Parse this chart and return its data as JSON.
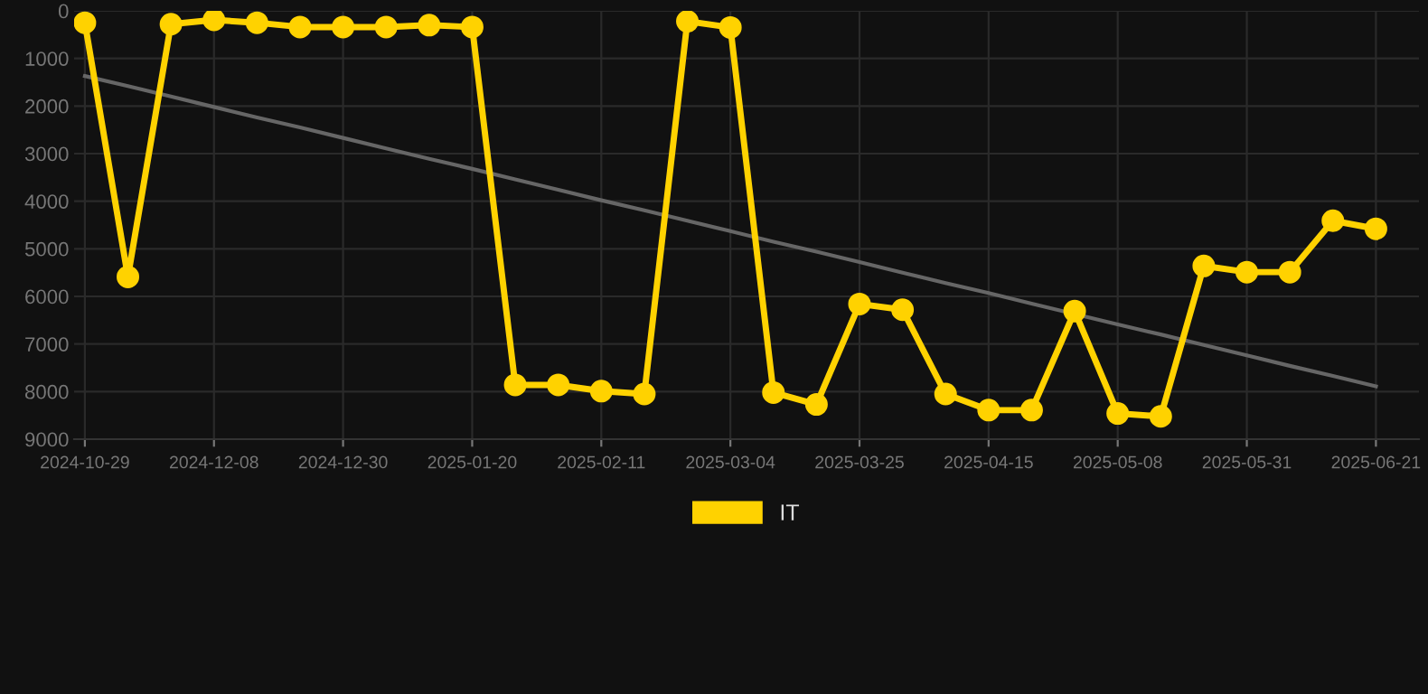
{
  "chart_data": {
    "type": "line",
    "categories": [
      "2024-10-29",
      null,
      null,
      "2024-12-08",
      null,
      null,
      "2024-12-30",
      null,
      null,
      "2025-01-20",
      null,
      null,
      "2025-02-11",
      null,
      null,
      "2025-03-04",
      null,
      null,
      "2025-03-25",
      null,
      null,
      "2025-04-15",
      null,
      null,
      "2025-05-08",
      null,
      null,
      "2025-05-31",
      null,
      null,
      "2025-06-21"
    ],
    "series": [
      {
        "name": "IT",
        "color": "#ffd200",
        "marker": "circle",
        "values": [
          250,
          5590,
          280,
          190,
          250,
          340,
          340,
          340,
          300,
          340,
          7860,
          7860,
          7990,
          8050,
          220,
          350,
          8020,
          8270,
          6160,
          6280,
          8050,
          8390,
          8390,
          6310,
          8460,
          8520,
          5360,
          5490,
          5490,
          4410,
          4580
        ]
      },
      {
        "color": "#666666",
        "marker": "none",
        "values": [
          1370,
          1580,
          1800,
          2020,
          2240,
          2450,
          2670,
          2890,
          3110,
          3320,
          3540,
          3760,
          3980,
          4190,
          4410,
          4630,
          4850,
          5060,
          5280,
          5500,
          5720,
          5930,
          6150,
          6370,
          6590,
          6800,
          7020,
          7240,
          7460,
          7670,
          7890
        ]
      }
    ],
    "ylim": [
      9000,
      0
    ],
    "yticks": [
      0,
      1000,
      2000,
      3000,
      4000,
      5000,
      6000,
      7000,
      8000,
      9000
    ],
    "grid": true,
    "legend": "bottom",
    "line_style": "solid"
  }
}
